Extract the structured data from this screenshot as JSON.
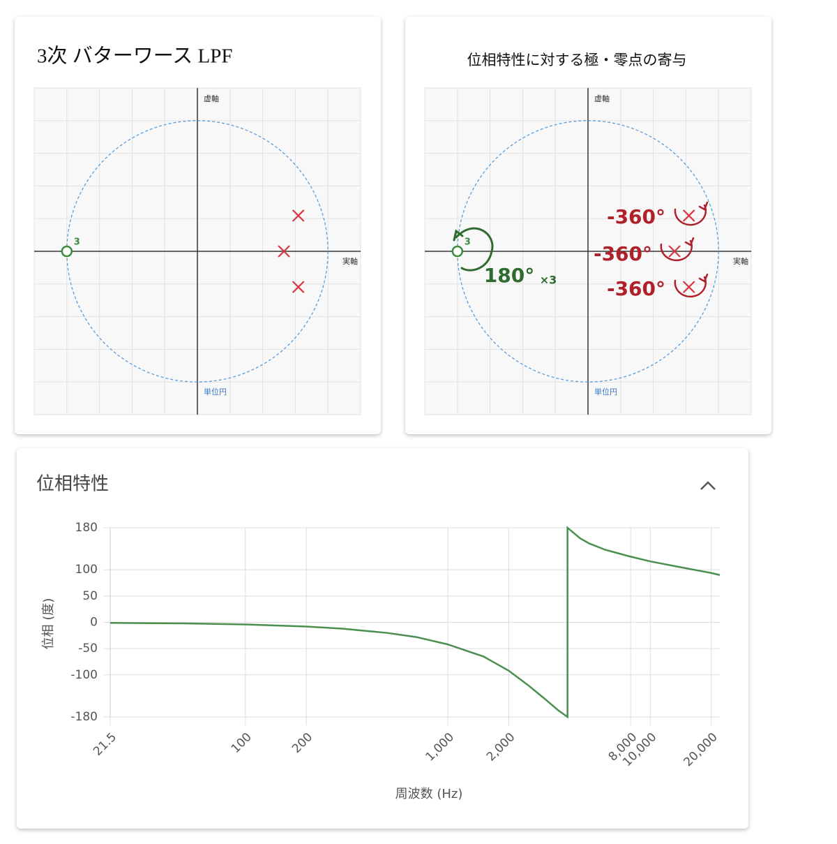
{
  "chart_data": [
    {
      "type": "pole-zero",
      "title": "3次 バターワース LPF",
      "x_label": "実軸",
      "y_label": "虚軸",
      "circle_label": "単位円",
      "xlim": [
        -1.25,
        1.25
      ],
      "ylim": [
        -1.25,
        1.25
      ],
      "xticks": [
        -1.25,
        -1,
        -0.75,
        -0.5,
        -0.25,
        0,
        0.25,
        0.5,
        0.75,
        1,
        1.25
      ],
      "yticks": [
        -1.25,
        -1,
        -0.75,
        -0.5,
        -0.25,
        0,
        0.25,
        0.5,
        0.75,
        1,
        1.25
      ],
      "grid": true,
      "poles": {
        "color": "#d9343f",
        "x": [
          0.663,
          0.773,
          0.773
        ],
        "y": [
          0,
          0.273,
          -0.273
        ]
      },
      "zeros": {
        "color": "#3a8a3a",
        "x": [
          -1
        ],
        "y": [
          0
        ],
        "multiplicity": [
          3
        ]
      }
    },
    {
      "type": "pole-zero",
      "title": "位相特性に対する極・零点の寄与",
      "x_label": "実軸",
      "y_label": "虚軸",
      "circle_label": "単位円",
      "xlim": [
        -1.25,
        1.25
      ],
      "ylim": [
        -1.25,
        1.25
      ],
      "xticks": [
        -1.25,
        -1,
        -0.75,
        -0.5,
        -0.25,
        0,
        0.25,
        0.5,
        0.75,
        1,
        1.25
      ],
      "yticks": [
        -1.25,
        -1,
        -0.75,
        -0.5,
        -0.25,
        0,
        0.25,
        0.5,
        0.75,
        1,
        1.25
      ],
      "grid": true,
      "poles": {
        "color": "#d9343f",
        "x": [
          0.663,
          0.773,
          0.773
        ],
        "y": [
          0,
          0.273,
          -0.273
        ]
      },
      "zeros": {
        "color": "#3a8a3a",
        "x": [
          -1
        ],
        "y": [
          0
        ],
        "multiplicity": [
          3
        ]
      },
      "annotations": [
        "-360°",
        "-360°",
        "-360°",
        "180°",
        "×3"
      ]
    },
    {
      "type": "line",
      "title": "位相特性",
      "x_label": "周波数 (Hz)",
      "y_label": "位相 (度)",
      "log_x": true,
      "grid": true,
      "xlim": [
        21.5,
        22050
      ],
      "ylim": [
        -180,
        180
      ],
      "xticks": [
        21.5,
        100,
        200,
        {
          "value": 1000,
          "label": "1,000"
        },
        {
          "value": 2000,
          "label": "2,000"
        },
        {
          "value": 8000,
          "label": "8,000"
        },
        {
          "value": 10000,
          "label": "10,000"
        },
        {
          "value": 20000,
          "label": "20,000"
        }
      ],
      "yticks": [
        180,
        100,
        50,
        0,
        -50,
        -100,
        -180
      ],
      "x": [
        21.5,
        50,
        100,
        200,
        300,
        500,
        700,
        1000,
        1500,
        2000,
        2500,
        3000,
        3500,
        3900,
        3900,
        4500,
        5000,
        6000,
        8000,
        10000,
        15000,
        20000,
        22050
      ],
      "series": [
        {
          "color": "#4a8f4e",
          "values": [
            -1,
            -2,
            -4,
            -8,
            -12,
            -20,
            -28,
            -42,
            -65,
            -92,
            -120,
            -145,
            -167,
            -180,
            180,
            160,
            150,
            138,
            125,
            116,
            103,
            94,
            90
          ]
        }
      ]
    }
  ]
}
